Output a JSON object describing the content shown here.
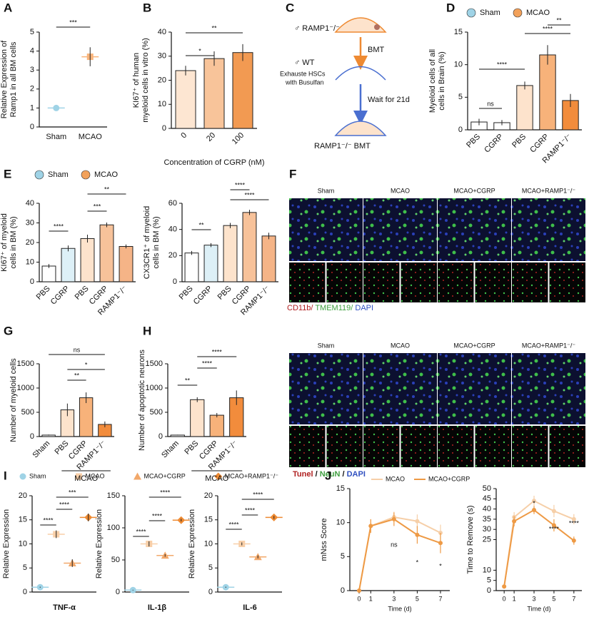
{
  "panels": [
    "A",
    "B",
    "C",
    "D",
    "E",
    "F",
    "G",
    "H",
    "I",
    "J"
  ],
  "diagram": {
    "labels": [
      "♂ RAMP1⁻/⁻",
      "BMT",
      "♂ WT",
      "Exhauste HSCs",
      "with Busulfan",
      "Wait for 21d",
      "RAMP1⁻/⁻ BMT"
    ]
  },
  "image_F": {
    "labels": [
      "Sham",
      "MCAO",
      "MCAO+CGRP",
      "MCAO+RAMP1⁻/⁻"
    ],
    "caption": [
      "CD11b/",
      " TMEM119/",
      " DAPI"
    ]
  },
  "image_H": {
    "labels": [
      "Sham",
      "MCAO",
      "MCAO+CGRP",
      "MCAO+RAMP1⁻/⁻"
    ],
    "caption": [
      "Tunel",
      " / ",
      "NeuN",
      " / ",
      "DAPI"
    ]
  },
  "legend_I": {
    "names": [
      "Sham",
      "MCAO",
      "MCAO+CGRP",
      "MCAO+RAMP1⁻/⁻"
    ],
    "colors": [
      "#9fd3e6",
      "#f8cfa8",
      "#f2a86a",
      "#ee8a32"
    ],
    "markers": [
      "circle",
      "square",
      "triangle",
      "diamond"
    ]
  },
  "chart_data": [
    {
      "type": "dot",
      "ylabel": [
        "Relative Expression of",
        "Ramp1 in all BM cells"
      ],
      "categories": [
        "Sham",
        "MCAO"
      ],
      "values": [
        1,
        3.7
      ],
      "errors": [
        0,
        0.5
      ],
      "colors": [
        "#9fd3e6",
        "#f8b37a"
      ],
      "markers": [
        "circle",
        "square"
      ],
      "ylim": [
        0,
        5
      ],
      "yticks": [
        0,
        1,
        2,
        3,
        4,
        5
      ],
      "annotations": [
        "***"
      ]
    },
    {
      "type": "bar",
      "ylabel": [
        "KI67⁺ of human",
        "myeloid cells in vitro (%)"
      ],
      "xlabel": "Concentration of CGRP (nM)",
      "categories": [
        "0",
        "20",
        "100"
      ],
      "values": [
        24,
        29,
        31.5
      ],
      "errors": [
        2,
        3,
        3.5
      ],
      "colors": [
        "#fde6d2",
        "#f8c49a",
        "#f29a52"
      ],
      "ylim": [
        0,
        40
      ],
      "yticks": [
        0,
        10,
        20,
        30,
        40
      ],
      "annotations": [
        "*",
        "**"
      ]
    },
    {
      "type": "bar",
      "ylabel": [
        "Myeloid cells of all",
        "cells in Brain (%)"
      ],
      "categories": [
        "PBS",
        "CGRP",
        "PBS",
        "CGRP",
        "RAMP1⁻/⁻"
      ],
      "values": [
        1.2,
        1.1,
        6.8,
        11.5,
        4.5
      ],
      "errors": [
        0.5,
        0.4,
        0.6,
        1.5,
        1
      ],
      "colors": [
        "#ffffff",
        "#ffffff",
        "#fde3cc",
        "#f7b27a",
        "#f28c3c"
      ],
      "ylim": [
        0,
        15
      ],
      "yticks": [
        0,
        5,
        10,
        15
      ],
      "annotations": [
        "ns",
        "****",
        "****",
        "**"
      ],
      "legend": [
        {
          "name": "Sham",
          "color": "#9fd3e6"
        },
        {
          "name": "MCAO",
          "color": "#f2a15a"
        }
      ]
    },
    {
      "type": "bar",
      "ylabel": [
        "KI67⁺ of myeloid",
        "cells in BM (%)"
      ],
      "categories": [
        "PBS",
        "CGRP",
        "PBS",
        "CGRP",
        "RAMP1⁻/⁻"
      ],
      "values": [
        8,
        17,
        22,
        29,
        18
      ],
      "errors": [
        1,
        1.5,
        2,
        1.2,
        1
      ],
      "colors": [
        "#ffffff",
        "#ddf0f7",
        "#fde3cc",
        "#f7c29a",
        "#f5b487"
      ],
      "ylim": [
        0,
        40
      ],
      "yticks": [
        0,
        10,
        20,
        30,
        40
      ],
      "annotations": [
        "****",
        "***",
        "**"
      ],
      "legend": [
        {
          "name": "Sham",
          "color": "#9fd3e6"
        },
        {
          "name": "MCAO",
          "color": "#f2a15a"
        }
      ]
    },
    {
      "type": "bar",
      "ylabel": [
        "CX3CR1⁺ of myeloid",
        "cells in BM (%)"
      ],
      "categories": [
        "PBS",
        "CGRP",
        "PBS",
        "CGRP",
        "RAMP1⁻/⁻"
      ],
      "values": [
        22,
        28,
        43,
        53,
        35
      ],
      "errors": [
        1.5,
        1.5,
        2,
        2,
        2.5
      ],
      "colors": [
        "#ffffff",
        "#ddf0f7",
        "#fde3cc",
        "#f7c29a",
        "#f5b487"
      ],
      "ylim": [
        0,
        60
      ],
      "yticks": [
        0,
        20,
        40,
        60
      ],
      "annotations": [
        "**",
        "****",
        "****"
      ]
    },
    {
      "type": "bar",
      "ylabel": [
        "Number of myeloid cells"
      ],
      "categories": [
        "Sham",
        "PBS",
        "CGRP",
        "RAMP1⁻/⁻"
      ],
      "group": "MCAO",
      "values": [
        30,
        550,
        800,
        250
      ],
      "errors": [
        10,
        130,
        110,
        60
      ],
      "colors": [
        "#ffffff",
        "#fde3cc",
        "#f7b27a",
        "#f28c3c"
      ],
      "ylim": [
        0,
        1500
      ],
      "yticks": [
        0,
        500,
        1000,
        1500
      ],
      "annotations": [
        "ns",
        "*",
        "**"
      ]
    },
    {
      "type": "bar",
      "ylabel": [
        "Number of apoptotic neurons"
      ],
      "categories": [
        "Sham",
        "PBS",
        "CGRP",
        "RAMP1⁻/⁻"
      ],
      "group": "MCAO",
      "values": [
        30,
        760,
        440,
        800
      ],
      "errors": [
        8,
        50,
        45,
        150
      ],
      "colors": [
        "#ffffff",
        "#fde3cc",
        "#f7b27a",
        "#f28c3c"
      ],
      "ylim": [
        0,
        1500
      ],
      "yticks": [
        0,
        500,
        1000,
        1500
      ],
      "annotations": [
        "****",
        "****",
        "**"
      ]
    },
    {
      "type": "dot",
      "ylabel": [
        "Relative Expression"
      ],
      "xlabel": "TNF-α",
      "values": [
        1,
        12,
        6,
        15.5
      ],
      "errors": [
        0.1,
        0.8,
        0.8,
        0.8
      ],
      "colors": [
        "#9fd3e6",
        "#f8cfa8",
        "#f2a86a",
        "#ee8a32"
      ],
      "markers": [
        "circle",
        "square",
        "triangle",
        "diamond"
      ],
      "ylim": [
        0,
        20
      ],
      "yticks": [
        0,
        5,
        10,
        15,
        20
      ],
      "annotations": [
        "***",
        "****",
        "****"
      ]
    },
    {
      "type": "dot",
      "ylabel": [
        "Relative Expression"
      ],
      "xlabel": "IL-1β",
      "values": [
        3,
        75,
        57,
        112
      ],
      "errors": [
        0.5,
        4,
        2,
        2
      ],
      "colors": [
        "#9fd3e6",
        "#f8cfa8",
        "#f2a86a",
        "#ee8a32"
      ],
      "markers": [
        "circle",
        "square",
        "triangle",
        "diamond"
      ],
      "ylim": [
        0,
        150
      ],
      "yticks": [
        0,
        50,
        100,
        150
      ],
      "annotations": [
        "****",
        "****",
        "****"
      ]
    },
    {
      "type": "dot",
      "ylabel": [
        "Relative Expression"
      ],
      "xlabel": "IL-6",
      "values": [
        1,
        10,
        7.3,
        15.5
      ],
      "errors": [
        0.1,
        0.3,
        0.3,
        0.3
      ],
      "colors": [
        "#9fd3e6",
        "#f8cfa8",
        "#f2a86a",
        "#ee8a32"
      ],
      "markers": [
        "circle",
        "square",
        "triangle",
        "diamond"
      ],
      "ylim": [
        0,
        20
      ],
      "yticks": [
        0,
        5,
        10,
        15,
        20
      ],
      "annotations": [
        "****",
        "****",
        "****"
      ]
    },
    {
      "type": "line",
      "ylabel": [
        "mNss Score"
      ],
      "xlabel": "Time (d)",
      "x": [
        0,
        1,
        3,
        5,
        7
      ],
      "xlim": [
        -0.8,
        7.8
      ],
      "xticks": [
        0,
        1,
        3,
        5,
        7
      ],
      "series": [
        {
          "name": "MCAO",
          "color": "#f6cfa8",
          "values": [
            0,
            9.5,
            10.8,
            10.2,
            8.5
          ],
          "errors": [
            0,
            1,
            0.8,
            1,
            1.2
          ]
        },
        {
          "name": "MCAO+CGRP",
          "color": "#ee9a45",
          "values": [
            0,
            9.5,
            10.5,
            8.2,
            7
          ],
          "errors": [
            0,
            1,
            1,
            1.3,
            1.5
          ]
        }
      ],
      "ylim": [
        0,
        15
      ],
      "yticks": [
        0,
        5,
        10,
        15
      ],
      "annotations": [
        "ns",
        "*",
        "*"
      ]
    },
    {
      "type": "line",
      "ylabel": [
        "Time to Remove (s)"
      ],
      "xlabel": "Time (d)",
      "x": [
        0,
        1,
        3,
        5,
        7
      ],
      "xlim": [
        -0.8,
        7.8
      ],
      "xticks": [
        0,
        1,
        3,
        5,
        7
      ],
      "series": [
        {
          "name": "MCAO",
          "color": "#f6cfa8",
          "values": [
            2,
            36,
            44,
            39,
            35
          ],
          "errors": [
            1,
            2.5,
            2.5,
            3,
            2.5
          ]
        },
        {
          "name": "MCAO+CGRP",
          "color": "#ee9a45",
          "values": [
            2,
            34,
            39.5,
            32,
            24.5
          ],
          "errors": [
            1,
            2.5,
            2,
            3,
            2
          ]
        }
      ],
      "ylim": [
        0,
        50
      ],
      "yticks": [
        0,
        5,
        10,
        25,
        30,
        35,
        40,
        45,
        50
      ],
      "annotations": [
        "*",
        "****",
        "****"
      ]
    }
  ]
}
